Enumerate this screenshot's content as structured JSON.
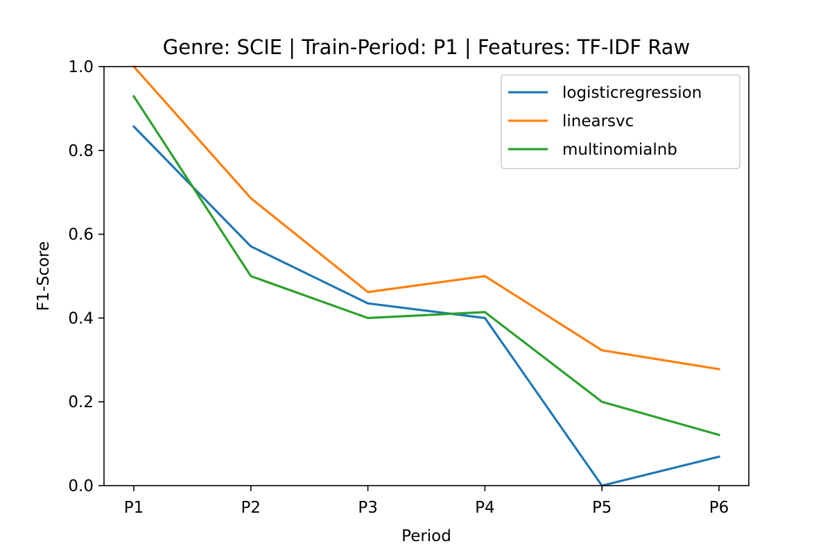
{
  "chart_data": {
    "type": "line",
    "title": "Genre: SCIE | Train-Period: P1 | Features: TF-IDF Raw",
    "xlabel": "Period",
    "ylabel": "F1-Score",
    "categories": [
      "P1",
      "P2",
      "P3",
      "P4",
      "P5",
      "P6"
    ],
    "ylim": [
      0,
      1
    ],
    "yticks": [
      "0.0",
      "0.2",
      "0.4",
      "0.6",
      "0.8",
      "1.0"
    ],
    "grid": false,
    "legend_position": "top-right",
    "series": [
      {
        "name": "logisticregression",
        "color": "#1f77b4",
        "values": [
          0.857,
          0.571,
          0.435,
          0.4,
          0.0,
          0.069
        ]
      },
      {
        "name": "linearsvc",
        "color": "#ff7f0e",
        "values": [
          1.0,
          0.686,
          0.462,
          0.5,
          0.323,
          0.278
        ]
      },
      {
        "name": "multinomialnb",
        "color": "#2ca02c",
        "values": [
          0.929,
          0.5,
          0.4,
          0.414,
          0.2,
          0.121
        ]
      }
    ]
  }
}
